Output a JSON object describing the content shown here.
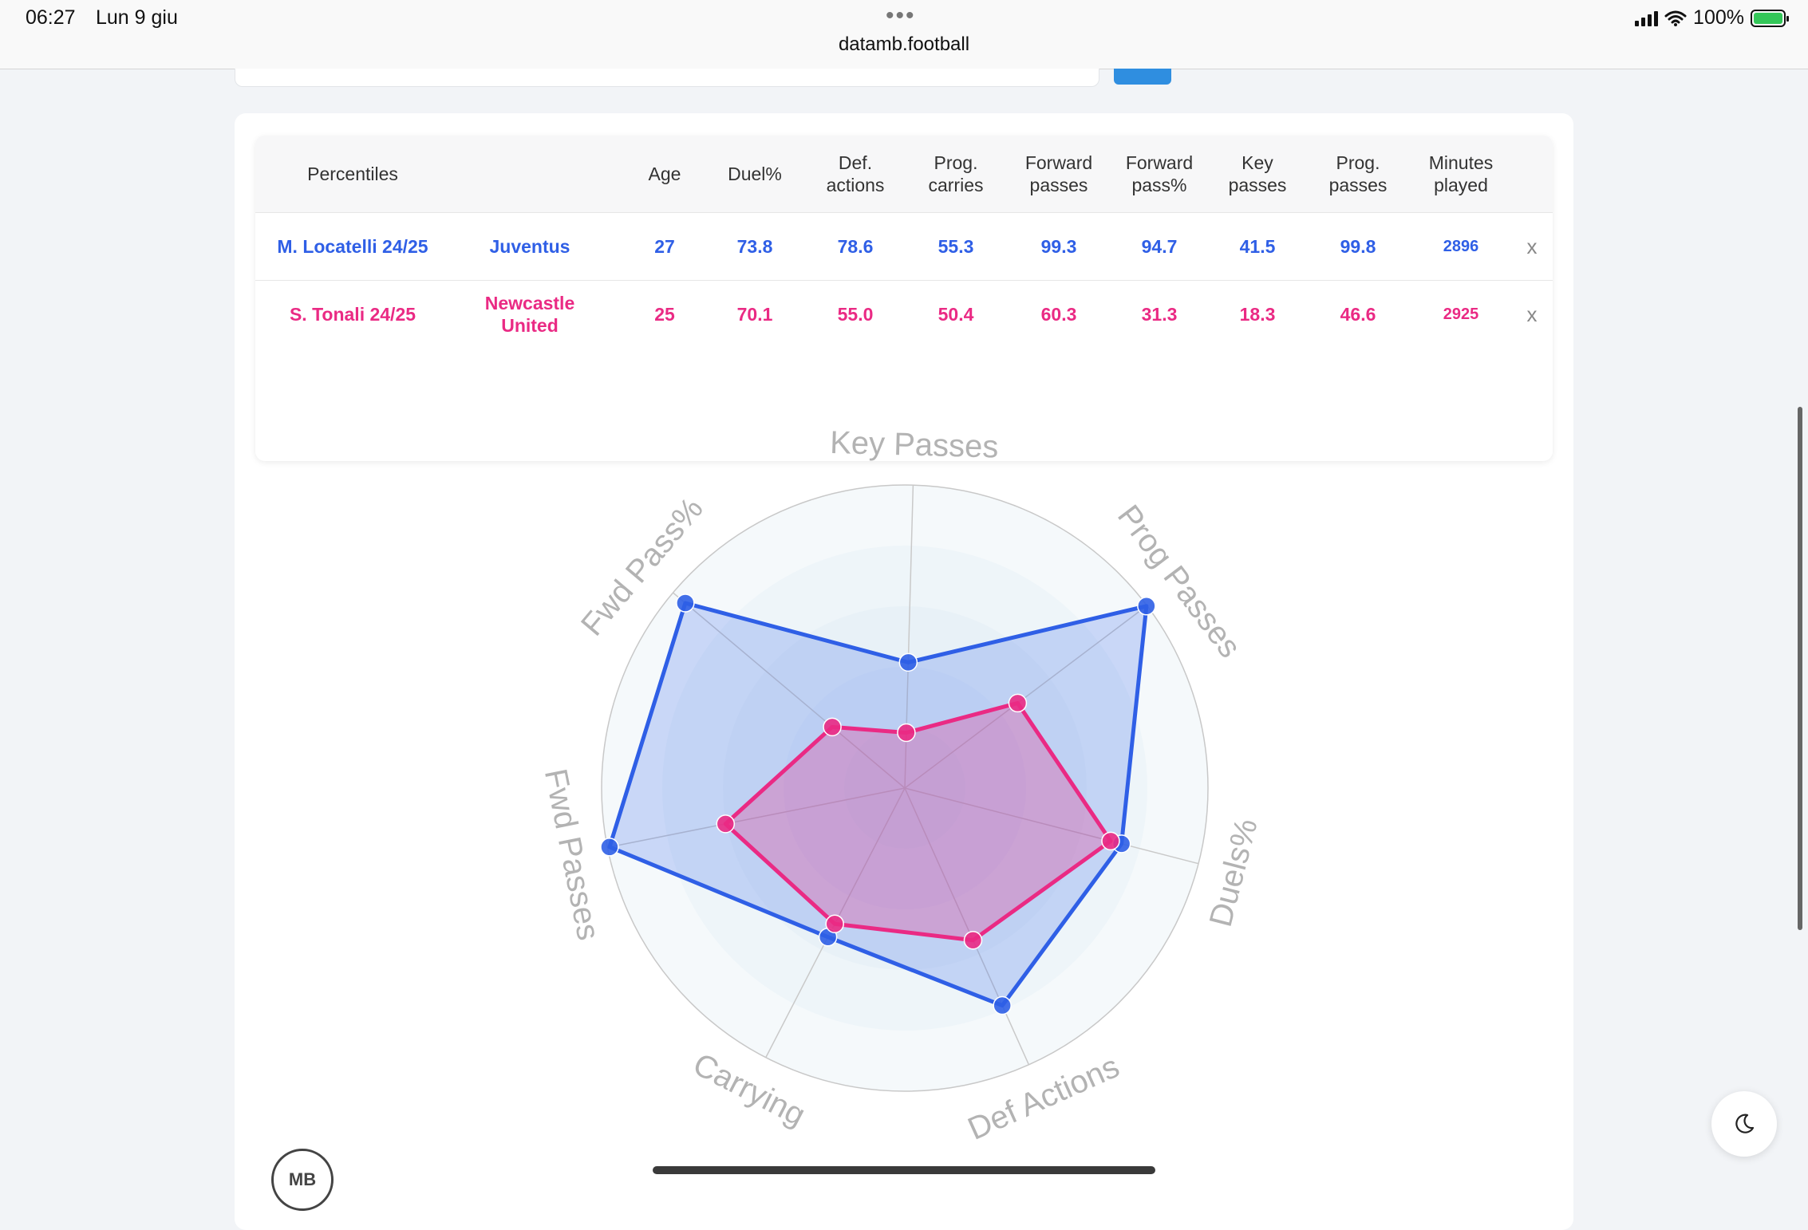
{
  "status_bar": {
    "time": "06:27",
    "date": "Lun 9 giu",
    "url": "datamb.football",
    "battery": "100%"
  },
  "table": {
    "headers": [
      "Percentiles",
      "Age",
      "Duel%",
      "Def.\nactions",
      "Prog.\ncarries",
      "Forward\npasses",
      "Forward\npass%",
      "Key\npasses",
      "Prog.\npasses",
      "Minutes\nplayed"
    ],
    "rows": [
      {
        "player": "M. Locatelli 24/25",
        "team": "Juventus",
        "age": "27",
        "duel_pct": "73.8",
        "def_actions": "78.6",
        "prog_carries": "55.3",
        "forward_passes": "99.3",
        "forward_pass_pct": "94.7",
        "key_passes": "41.5",
        "prog_passes": "99.8",
        "minutes": "2896",
        "remove": "x",
        "color": "#2f5fe6"
      },
      {
        "player": "S. Tonali 24/25",
        "team": "Newcastle\nUnited",
        "age": "25",
        "duel_pct": "70.1",
        "def_actions": "55.0",
        "prog_carries": "50.4",
        "forward_passes": "60.3",
        "forward_pass_pct": "31.3",
        "key_passes": "18.3",
        "prog_passes": "46.6",
        "minutes": "2925",
        "remove": "x",
        "color": "#ea2a84"
      }
    ]
  },
  "chart_data": {
    "type": "radar",
    "axes": [
      "Key Passes",
      "Prog Passes",
      "Duels%",
      "Def Actions",
      "Carrying",
      "Fwd Passes",
      "Fwd Pass%"
    ],
    "range": [
      0,
      100
    ],
    "series": [
      {
        "name": "M. Locatelli 24/25",
        "color": "#2f5fe6",
        "values": [
          41.5,
          99.8,
          73.8,
          78.6,
          55.3,
          99.3,
          94.7
        ]
      },
      {
        "name": "S. Tonali 24/25",
        "color": "#ea2a84",
        "values": [
          18.3,
          46.6,
          70.1,
          55.0,
          50.4,
          60.3,
          31.3
        ]
      }
    ]
  }
}
